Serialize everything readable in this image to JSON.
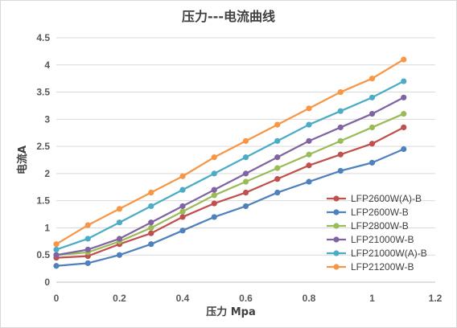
{
  "chart_data": {
    "type": "line",
    "title": "压力---电流曲线",
    "xlabel": "压力 Mpa",
    "ylabel": "电流A",
    "xlim": [
      0,
      1.2
    ],
    "ylim": [
      0,
      4.5
    ],
    "x_ticks": [
      "0",
      "0.2",
      "0.4",
      "0.6",
      "0.8",
      "1",
      "1.2"
    ],
    "y_ticks": [
      "0",
      "0.5",
      "1",
      "1.5",
      "2",
      "2.5",
      "3",
      "3.5",
      "4",
      "4.5"
    ],
    "grid": "horizontal",
    "legend_position": "right",
    "x": [
      0,
      0.1,
      0.2,
      0.3,
      0.4,
      0.5,
      0.6,
      0.7,
      0.8,
      0.9,
      1.0,
      1.1
    ],
    "series": [
      {
        "name": "LFP2600W(A)-B",
        "color": "#c0504d",
        "values": [
          0.45,
          0.48,
          0.7,
          0.9,
          1.2,
          1.45,
          1.65,
          1.9,
          2.15,
          2.35,
          2.55,
          2.85
        ]
      },
      {
        "name": "LFP2600W-B",
        "color": "#4f81bd",
        "values": [
          0.3,
          0.35,
          0.5,
          0.7,
          0.95,
          1.2,
          1.4,
          1.65,
          1.85,
          2.05,
          2.2,
          2.45
        ]
      },
      {
        "name": "LFP2800W-B",
        "color": "#9bbb59",
        "values": [
          0.5,
          0.55,
          0.75,
          1.0,
          1.3,
          1.6,
          1.85,
          2.1,
          2.35,
          2.6,
          2.85,
          3.1
        ]
      },
      {
        "name": "LFP21000W-B",
        "color": "#8064a2",
        "values": [
          0.5,
          0.6,
          0.8,
          1.1,
          1.4,
          1.7,
          2.0,
          2.3,
          2.6,
          2.85,
          3.1,
          3.4
        ]
      },
      {
        "name": "LFP21000W(A)-B",
        "color": "#4bacc6",
        "values": [
          0.6,
          0.8,
          1.1,
          1.4,
          1.7,
          2.0,
          2.3,
          2.6,
          2.9,
          3.15,
          3.4,
          3.7
        ]
      },
      {
        "name": "LFP21200W-B",
        "color": "#f79646",
        "values": [
          0.7,
          1.05,
          1.35,
          1.65,
          1.95,
          2.3,
          2.6,
          2.9,
          3.2,
          3.5,
          3.75,
          4.1
        ]
      }
    ]
  }
}
